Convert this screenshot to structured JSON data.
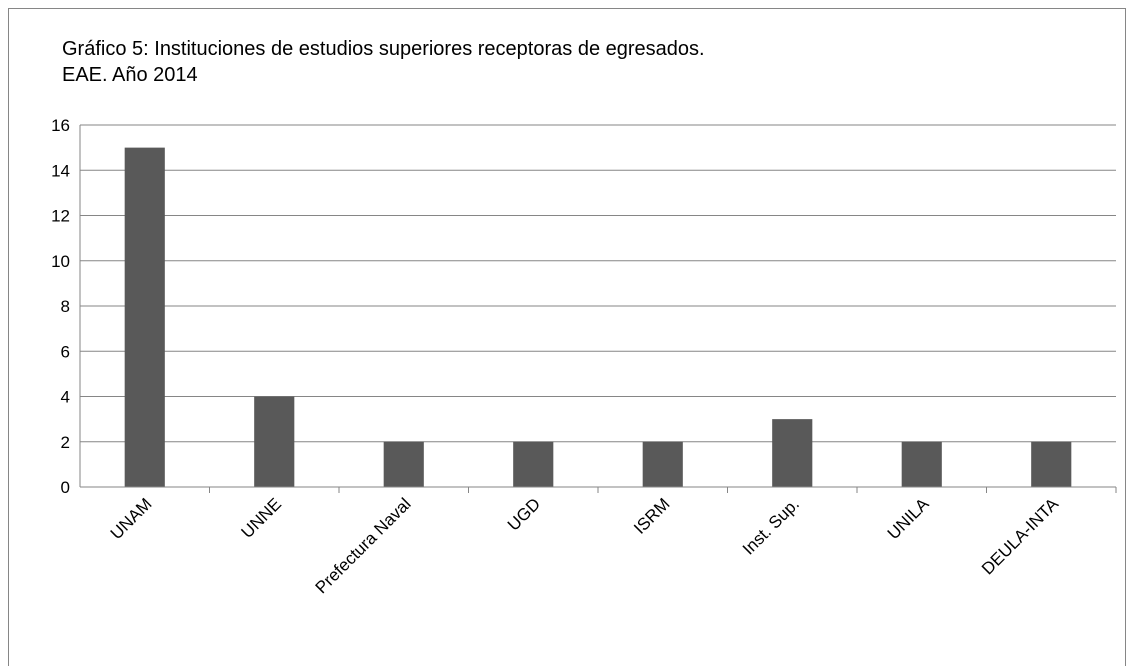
{
  "chart_data": {
    "type": "bar",
    "title": [
      "Gráfico 5: Instituciones de estudios superiores receptoras de egresados.",
      "EAE. Año 2014"
    ],
    "categories": [
      "UNAM",
      "UNNE",
      "Prefectura Naval",
      "UGD",
      "ISRM",
      "Inst. Sup.",
      "UNILA",
      "DEULA-INTA"
    ],
    "values": [
      15,
      4,
      2,
      2,
      2,
      3,
      2,
      2
    ],
    "color": "#595959",
    "ylim": [
      0,
      16
    ],
    "yticks": [
      0,
      2,
      4,
      6,
      8,
      10,
      12,
      14,
      16
    ],
    "grid": true
  }
}
